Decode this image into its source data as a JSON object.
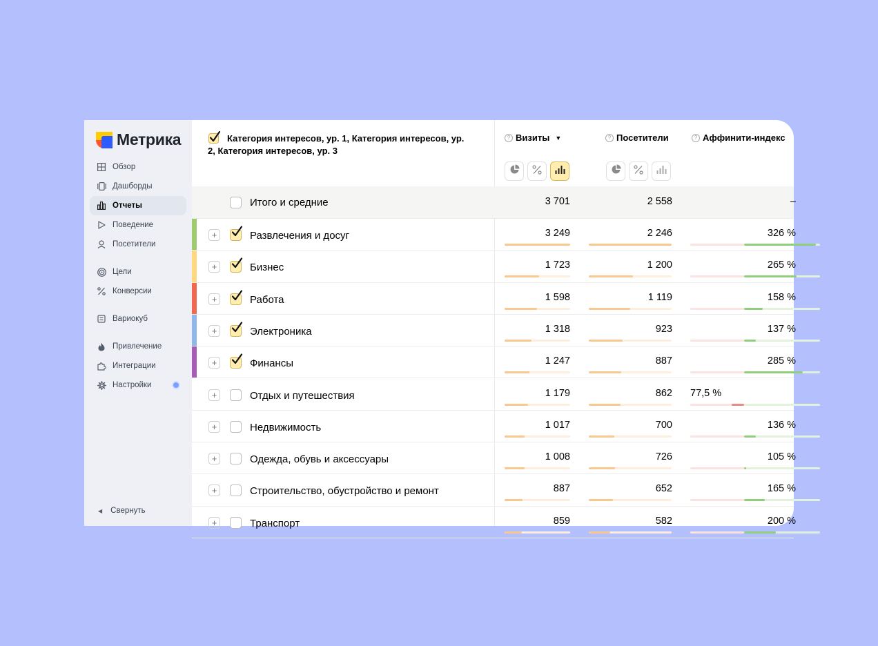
{
  "app": {
    "logo_text": "Метрика"
  },
  "sidebar": {
    "items": [
      {
        "label": "Обзор",
        "icon": "grid-icon"
      },
      {
        "label": "Дашборды",
        "icon": "dashboards-icon"
      },
      {
        "label": "Отчеты",
        "icon": "reports-icon",
        "active": true
      },
      {
        "label": "Поведение",
        "icon": "play-icon"
      },
      {
        "label": "Посетители",
        "icon": "user-icon"
      },
      {
        "label": "Цели",
        "icon": "target-icon"
      },
      {
        "label": "Конверсии",
        "icon": "percent-icon"
      },
      {
        "label": "Вариокуб",
        "icon": "variocube-icon"
      },
      {
        "label": "Привлечение",
        "icon": "flame-icon"
      },
      {
        "label": "Интеграции",
        "icon": "puzzle-icon"
      },
      {
        "label": "Настройки",
        "icon": "gear-icon",
        "badge": true
      }
    ],
    "collapse_label": "Свернуть"
  },
  "table": {
    "dimension_title": "Категория интересов, ур. 1, Категория интересов, ур. 2, Категория интересов, ур. 3",
    "columns": [
      {
        "label": "Визиты",
        "sorted": true,
        "sort_glyph": "▼"
      },
      {
        "label": "Посетители"
      },
      {
        "label": "Аффинити-индекс"
      }
    ],
    "total": {
      "name": "Итого и средние",
      "visits": "3 701",
      "visitors": "2 558",
      "affinity": "–"
    },
    "rows": [
      {
        "name": "Развлечения и досуг",
        "visits": "3 249",
        "visitors": "2 246",
        "affinity": "326 %",
        "checked": true,
        "color": "#9ecb6e",
        "visits_share": 1.0,
        "visitors_share": 1.0,
        "affinity_index": 3.26
      },
      {
        "name": "Бизнес",
        "visits": "1 723",
        "visitors": "1 200",
        "affinity": "265 %",
        "checked": true,
        "color": "#ffd97d",
        "visits_share": 0.53,
        "visitors_share": 0.53,
        "affinity_index": 2.65
      },
      {
        "name": "Работа",
        "visits": "1 598",
        "visitors": "1 119",
        "affinity": "158 %",
        "checked": true,
        "color": "#f2674f",
        "visits_share": 0.49,
        "visitors_share": 0.5,
        "affinity_index": 1.58
      },
      {
        "name": "Электроника",
        "visits": "1 318",
        "visitors": "923",
        "affinity": "137 %",
        "checked": true,
        "color": "#8fb8e8",
        "visits_share": 0.41,
        "visitors_share": 0.41,
        "affinity_index": 1.37
      },
      {
        "name": "Финансы",
        "visits": "1 247",
        "visitors": "887",
        "affinity": "285 %",
        "checked": true,
        "color": "#a65cb6",
        "visits_share": 0.38,
        "visitors_share": 0.39,
        "affinity_index": 2.85
      },
      {
        "name": "Отдых и путешествия",
        "visits": "1 179",
        "visitors": "862",
        "affinity": "77,5 %",
        "checked": false,
        "color": "",
        "visits_share": 0.36,
        "visitors_share": 0.38,
        "affinity_index": 0.775
      },
      {
        "name": "Недвижимость",
        "visits": "1 017",
        "visitors": "700",
        "affinity": "136 %",
        "checked": false,
        "color": "",
        "visits_share": 0.31,
        "visitors_share": 0.31,
        "affinity_index": 1.36
      },
      {
        "name": "Одежда, обувь и аксессуары",
        "visits": "1 008",
        "visitors": "726",
        "affinity": "105 %",
        "checked": false,
        "color": "",
        "visits_share": 0.31,
        "visitors_share": 0.32,
        "affinity_index": 1.05
      },
      {
        "name": "Строительство, обустройство и ремонт",
        "visits": "887",
        "visitors": "652",
        "affinity": "165 %",
        "checked": false,
        "color": "",
        "visits_share": 0.27,
        "visitors_share": 0.29,
        "affinity_index": 1.65
      },
      {
        "name": "Транспорт",
        "visits": "859",
        "visitors": "582",
        "affinity": "200 %",
        "checked": false,
        "color": "",
        "visits_share": 0.26,
        "visitors_share": 0.26,
        "affinity_index": 2.0
      }
    ]
  },
  "colors": {
    "background": "#b3c0fd",
    "sidebar": "#eef0f6",
    "bar_orange": "#f9c88f",
    "bar_orange_track": "#fdeedd",
    "bar_green": "#8fcf7c",
    "bar_green_track": "#e2f2dc",
    "bar_red": "#e98a85",
    "bar_red_track": "#fbe3e1",
    "active_button": "#ffeeb0"
  }
}
